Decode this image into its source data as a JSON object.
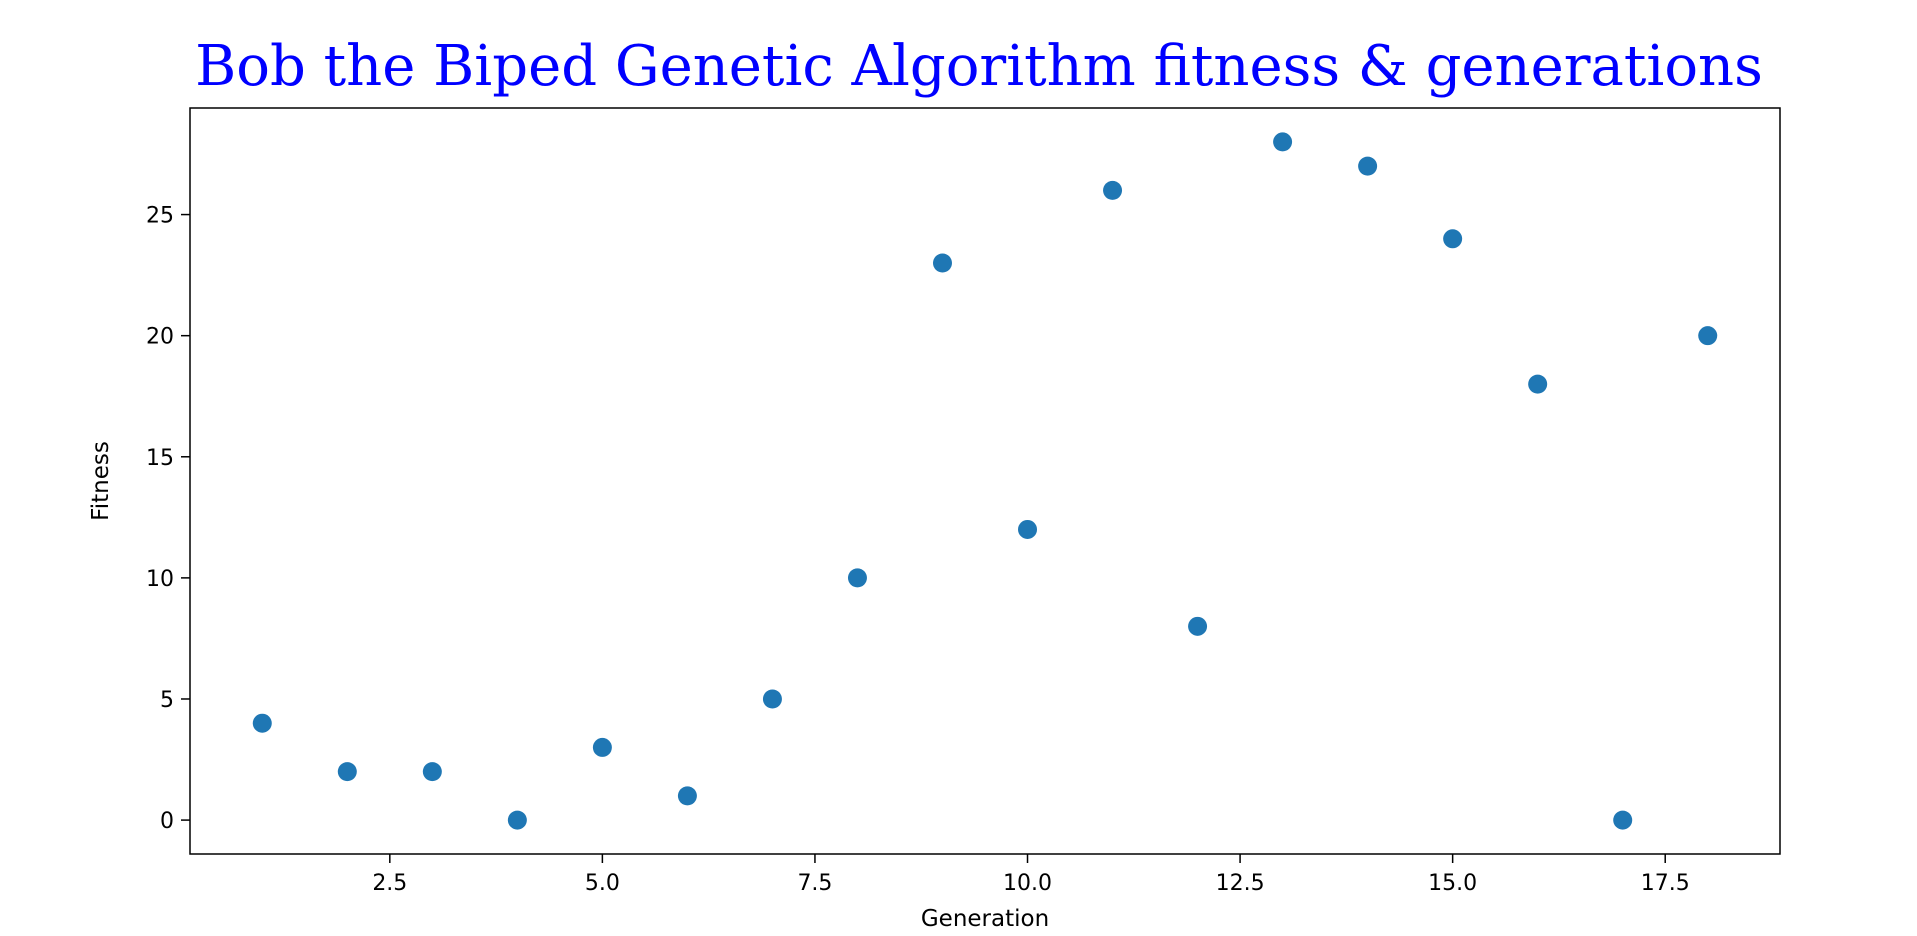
{
  "chart_data": {
    "type": "scatter",
    "title": "Bob the Biped Genetic Algorithm fitness & generations",
    "xlabel": "Generation",
    "ylabel": "Fitness",
    "xlim": [
      0.15,
      18.85
    ],
    "ylim": [
      -1.4,
      29.4
    ],
    "xticks": [
      2.5,
      5.0,
      7.5,
      10.0,
      12.5,
      15.0,
      17.5
    ],
    "xtick_labels": [
      "2.5",
      "5.0",
      "7.5",
      "10.0",
      "12.5",
      "15.0",
      "17.5"
    ],
    "yticks": [
      0,
      5,
      10,
      15,
      20,
      25
    ],
    "ytick_labels": [
      "0",
      "5",
      "10",
      "15",
      "20",
      "25"
    ],
    "grid": false,
    "series": [
      {
        "x": [
          1,
          2,
          3,
          4,
          5,
          6,
          7,
          8,
          9,
          10,
          11,
          12,
          13,
          14,
          15,
          16,
          17,
          18
        ],
        "y": [
          4,
          2,
          2,
          0,
          3,
          1,
          5,
          10,
          23,
          12,
          26,
          8,
          28,
          27,
          24,
          18,
          0,
          20
        ]
      }
    ]
  },
  "colors": {
    "title": "#0000ff",
    "marker": "#1f77b4",
    "axes": "#000000",
    "background": "#ffffff"
  }
}
